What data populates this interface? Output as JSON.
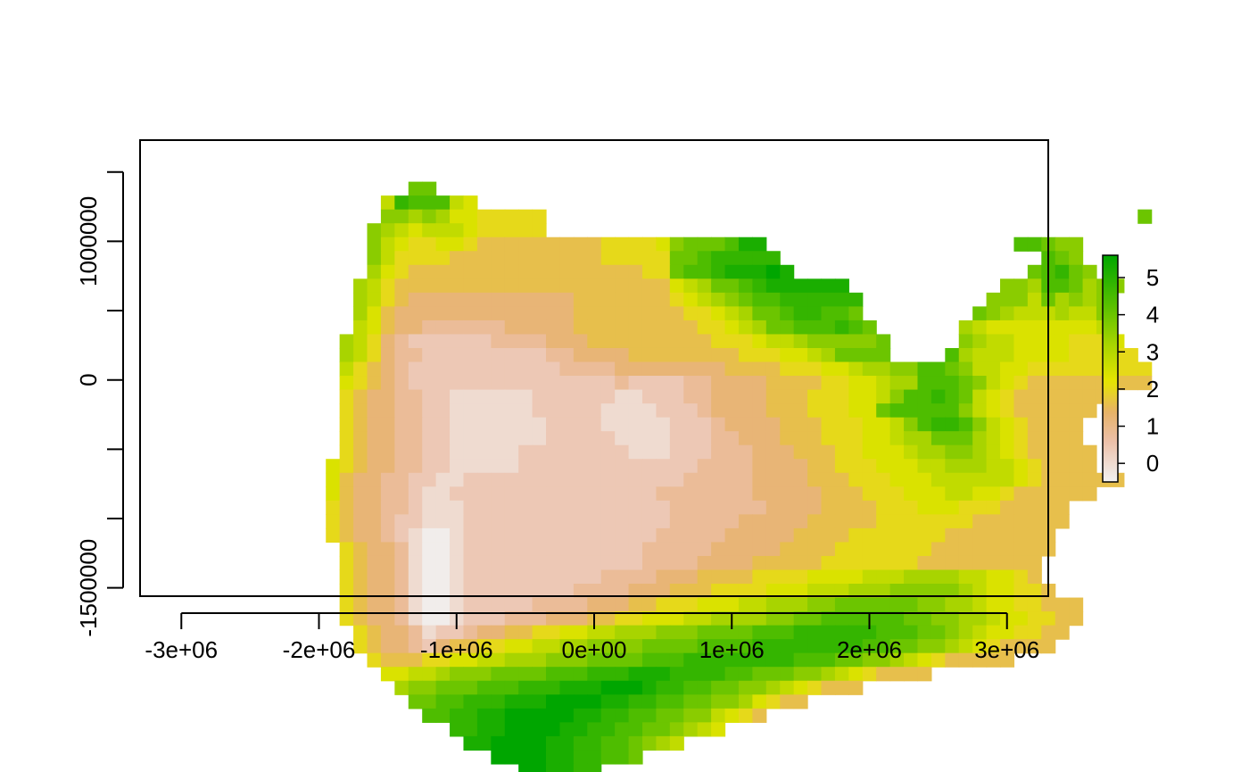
{
  "chart_data": {
    "type": "heatmap",
    "title": "",
    "xlabel": "",
    "ylabel": "",
    "xlim": [
      -3300000,
      3300000
    ],
    "ylim": [
      -1560000,
      1730000
    ],
    "x_ticks": [
      -3000000,
      -2000000,
      -1000000,
      0,
      1000000,
      2000000,
      3000000
    ],
    "x_tick_labels": [
      "-3e+06",
      "-2e+06",
      "-1e+06",
      "0e+00",
      "1e+06",
      "2e+06",
      "3e+06"
    ],
    "y_ticks": [
      -1500000,
      -1000000,
      -500000,
      0,
      500000,
      1000000,
      1500000
    ],
    "y_tick_labels": [
      "-1500000",
      "",
      "",
      "0",
      "",
      "1000000",
      ""
    ],
    "cell_size": 100000,
    "grid_origin": {
      "x_min": -2450000,
      "y_top": 1730000
    },
    "color_scale": {
      "min": -0.5,
      "max": 5.6,
      "ticks": [
        0,
        1,
        2,
        3,
        4,
        5
      ],
      "tick_labels": [
        "0",
        "1",
        "2",
        "3",
        "4",
        "5"
      ],
      "stops": [
        [
          -0.5,
          "#f2f2f2"
        ],
        [
          0.6,
          "#ecbfa8"
        ],
        [
          1.4,
          "#e7b266"
        ],
        [
          2.2,
          "#e6e600"
        ],
        [
          3.2,
          "#a8d400"
        ],
        [
          4.3,
          "#55bf00"
        ],
        [
          5.6,
          "#00a600"
        ]
      ]
    },
    "rows": [
      "..........................................................",
      "....................................................................",
      ".......................................................................",
      "...........BB..........................................................",
      ".........8DCCC87.......................................................",
      ".........AA9A97766666...........................................B......",
      "........A987888766666...............................................",
      "........A876677655555555566667ABBBCEE..................CCBAA..........",
      "........A866665555555555566666BBCDDDDD...................CBA..........",
      "........9765555555555555555566BCCDEEEGE.................BCDBA.........",
      ".......98655555555555555555555789BBCDEEEEEE...........AA9CCB9AA......",
      ".......986544444444444455555556789ABCCDDDDDD.........AAA8B9A9A.......",
      ".......97544444444444445555555566789BBCDDCCB........BA9888988A.......",
      ".......875443333334444455555555566789BBCCCDCB......98777777778.......",
      "......9864322222233334445555555556667889AAAAAB.....A98877776667.......",
      "......986433222222222334444555555556667789BBBB....C9888777766666.......",
      "......8654322222222222333344444444555566677899AACCBA8877666666666......",
      "......765432222222222222223222233444455556677899CCCBA876555555555......",
      "......6544332211111122222211222334444555666778ACCDCB8765555555........",
      "......654433221111112222211112223444455566677BCCCCCA876555555........",
      "......65443322111111122221111122234444555666778ACDDCA8765555.........",
      "......6544332211111112222211112223344455566677899BBB98765555.........",
      "......65443322111112222222211122233344455566777899AA987655555........",
      ".....76544332211111222222222222233334444556667778899988765555.........",
      ".....7544332211222222222222222233333444455566677788888876555555......",
      ".....75443321122222222222222233333334444455566677788776555555.......",
      ".....654433211122222222222222233333334444555566677766655555.........",
      ".....654432211122222222222222233333444445555566666665555555.........",
      ".....65443210012222222222222233333444445555666666655555555..........",
      "......6544310012222222222222333334444455556666666555555555..........",
      "......654431001222222222222233334444555556666666555555555...........",
      "......654431001222222222233334445555666677778889999887765...........",
      "......6544310012222222233334445556666777888999AAAAA9877665...........",
      "......6544310012222233334445566677788999AABBBBBBAA9987766555.........",
      "......6544310012223334445566777889999AABBCCCCCCBBAA998776655.........",
      ".......6544312234455667788999AAABBBBCCCDDDDDDCCCBBA98776655...........",
      ".......65443245566778899AAAABBBBCCCCDDDDDDDDCCBBAA98765555...........",
      "........6555667788999AAABBBBCCCDDDDDDDDCCCBBAA987655555..........",
      ".........77889AAABBBBCCCDDDEEEDDDDCCBBBAA98765555..........",
      "..........9AABBBCCCDDDEEEFFFEDDCCBBAA9876555............",
      "...........BBCCDDDEEEFFFFEEDDCCBBAA97655...............",
      "............CCDDEEFFFFFEEDDCCBBAA8765..................",
      "..............DDEEFFFFEEDDCCBBA987..................",
      "...............EEFFFFEEDDCCBA98......................",
      ".................FFFFEEDDCCB.........................",
      "...................FFEEDD.............................",
      "......................................................."
    ]
  }
}
